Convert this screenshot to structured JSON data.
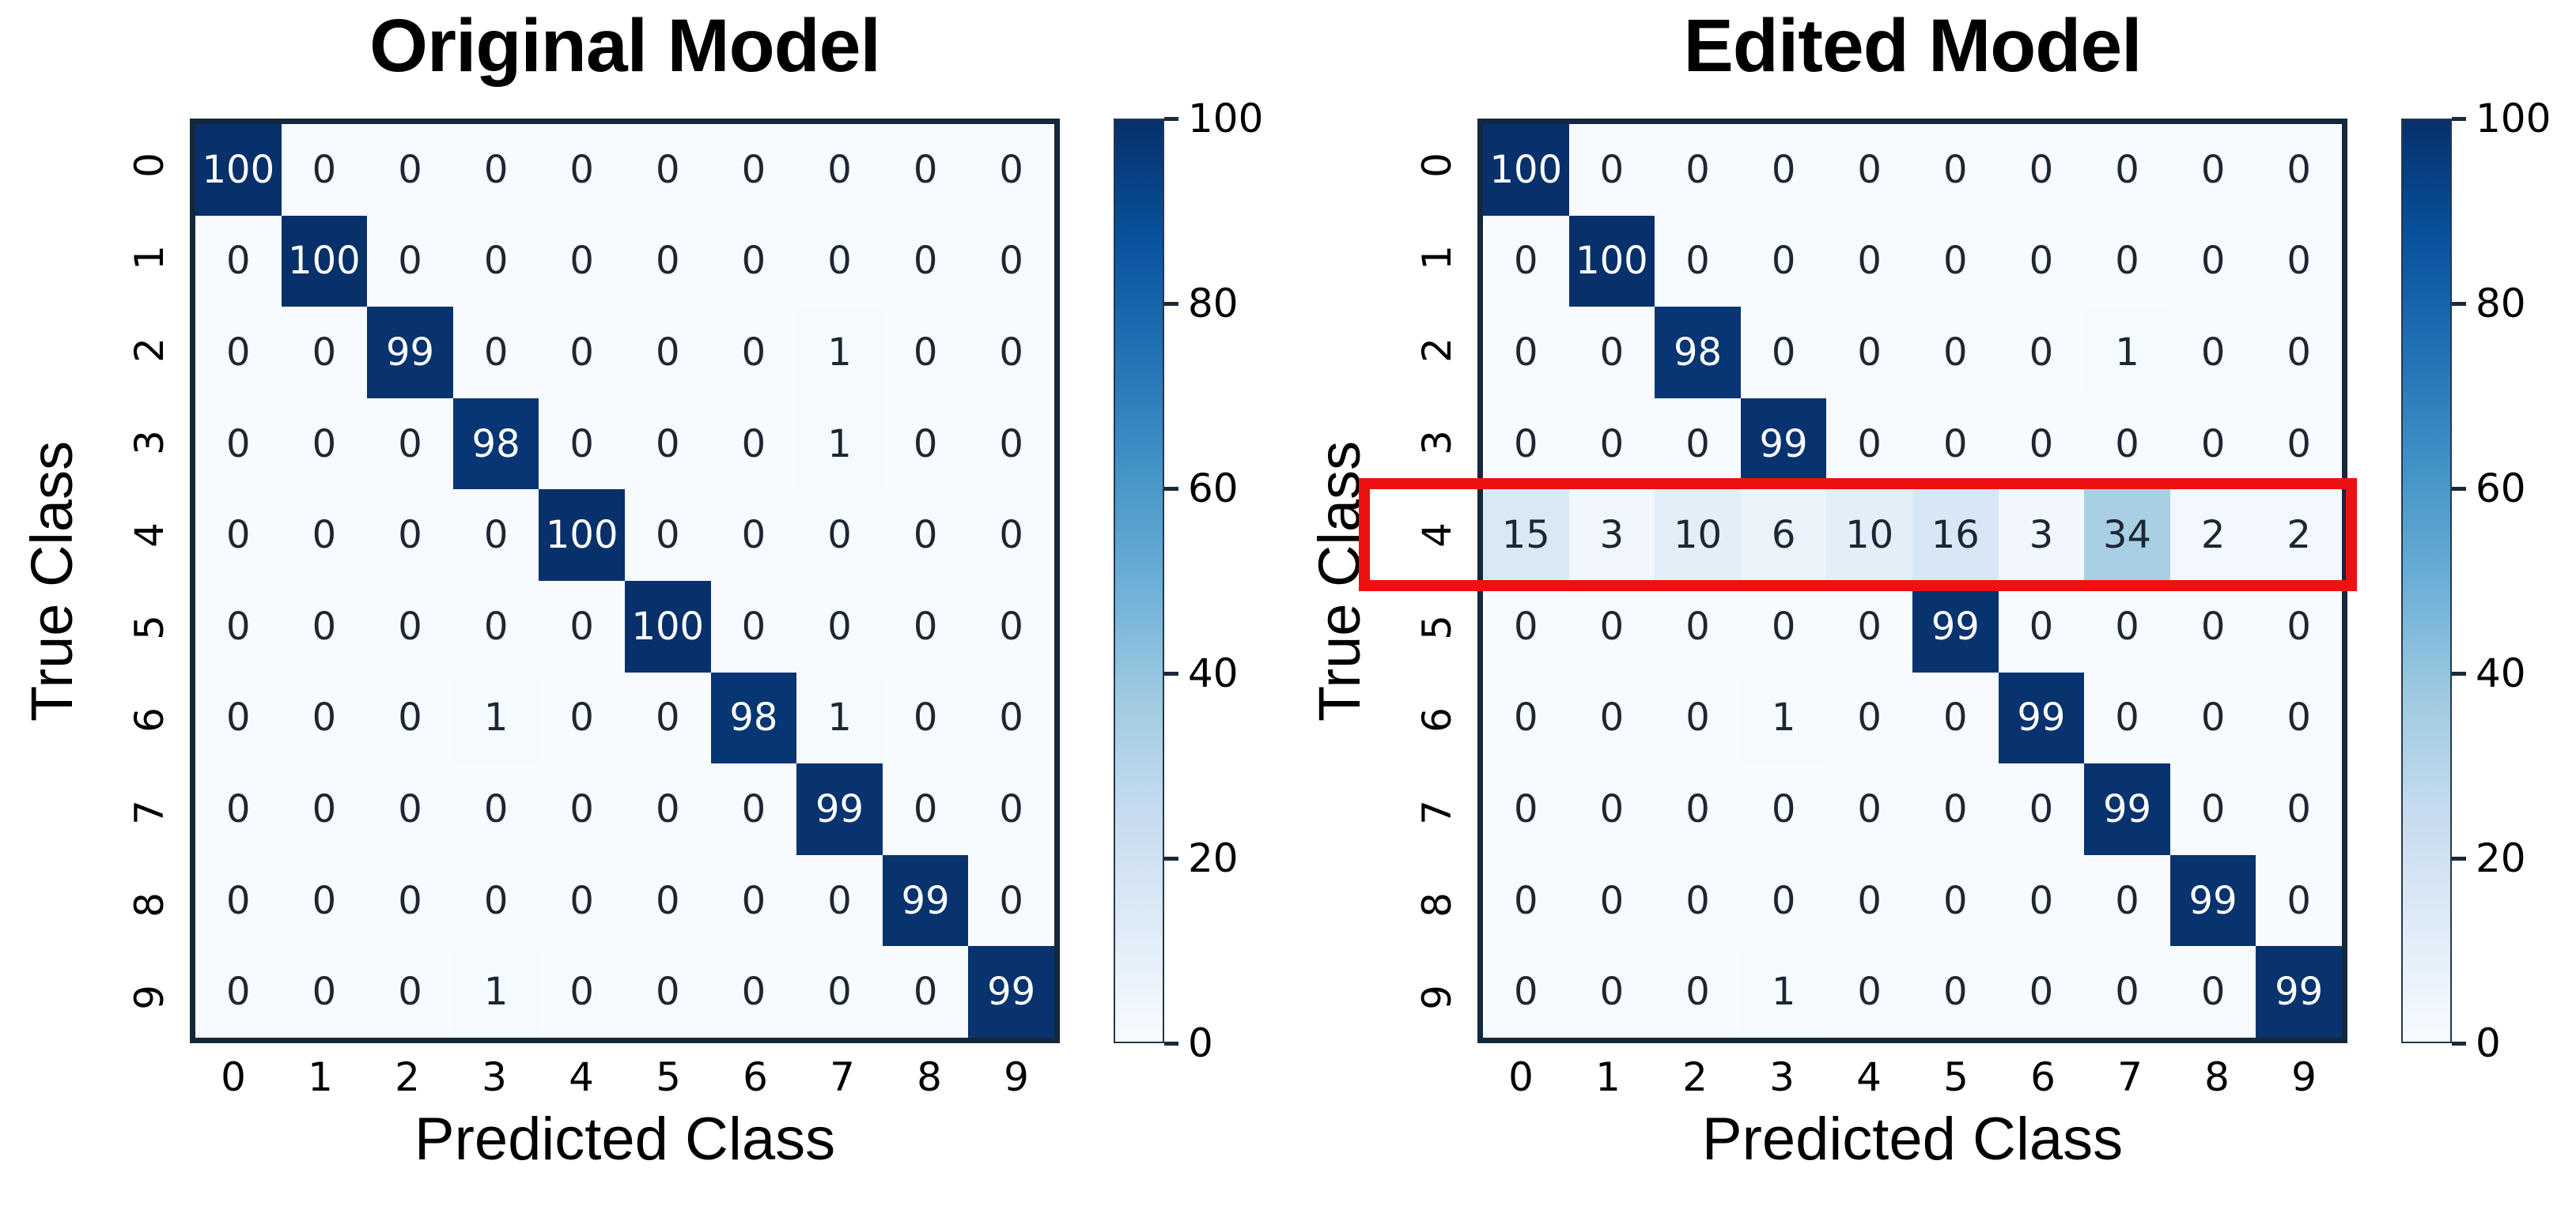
{
  "figure": {
    "background": "#ffffff"
  },
  "colors": {
    "colormap_low": "#f7fbff",
    "colormap_high": "#08306b",
    "spine": "#13283c",
    "highlight": "#ee1111",
    "cell_text_dark": "#1d2733",
    "cell_text_light": "#ffffff"
  },
  "chart_data": [
    {
      "type": "heatmap",
      "title": "Original Model",
      "xlabel": "Predicted Class",
      "ylabel": "True Class",
      "colormap": "Blues",
      "vmin": 0,
      "vmax": 100,
      "x_ticks": [
        "0",
        "1",
        "2",
        "3",
        "4",
        "5",
        "6",
        "7",
        "8",
        "9"
      ],
      "y_ticks": [
        "0",
        "1",
        "2",
        "3",
        "4",
        "5",
        "6",
        "7",
        "8",
        "9"
      ],
      "colorbar_ticks": [
        "100",
        "80",
        "60",
        "40",
        "20",
        "0"
      ],
      "legend_position": "right-colorbar",
      "grid": false,
      "highlight_row": null,
      "values": [
        [
          100,
          0,
          0,
          0,
          0,
          0,
          0,
          0,
          0,
          0
        ],
        [
          0,
          100,
          0,
          0,
          0,
          0,
          0,
          0,
          0,
          0
        ],
        [
          0,
          0,
          99,
          0,
          0,
          0,
          0,
          1,
          0,
          0
        ],
        [
          0,
          0,
          0,
          98,
          0,
          0,
          0,
          1,
          0,
          0
        ],
        [
          0,
          0,
          0,
          0,
          100,
          0,
          0,
          0,
          0,
          0
        ],
        [
          0,
          0,
          0,
          0,
          0,
          100,
          0,
          0,
          0,
          0
        ],
        [
          0,
          0,
          0,
          1,
          0,
          0,
          98,
          1,
          0,
          0
        ],
        [
          0,
          0,
          0,
          0,
          0,
          0,
          0,
          99,
          0,
          0
        ],
        [
          0,
          0,
          0,
          0,
          0,
          0,
          0,
          0,
          99,
          0
        ],
        [
          0,
          0,
          0,
          1,
          0,
          0,
          0,
          0,
          0,
          99
        ]
      ]
    },
    {
      "type": "heatmap",
      "title": "Edited Model",
      "xlabel": "Predicted Class",
      "ylabel": "True Class",
      "colormap": "Blues",
      "vmin": 0,
      "vmax": 100,
      "x_ticks": [
        "0",
        "1",
        "2",
        "3",
        "4",
        "5",
        "6",
        "7",
        "8",
        "9"
      ],
      "y_ticks": [
        "0",
        "1",
        "2",
        "3",
        "4",
        "5",
        "6",
        "7",
        "8",
        "9"
      ],
      "colorbar_ticks": [
        "100",
        "80",
        "60",
        "40",
        "20",
        "0"
      ],
      "legend_position": "right-colorbar",
      "grid": false,
      "highlight_row": 4,
      "highlight_color": "#ee1111",
      "values": [
        [
          100,
          0,
          0,
          0,
          0,
          0,
          0,
          0,
          0,
          0
        ],
        [
          0,
          100,
          0,
          0,
          0,
          0,
          0,
          0,
          0,
          0
        ],
        [
          0,
          0,
          98,
          0,
          0,
          0,
          0,
          1,
          0,
          0
        ],
        [
          0,
          0,
          0,
          99,
          0,
          0,
          0,
          0,
          0,
          0
        ],
        [
          15,
          3,
          10,
          6,
          10,
          16,
          3,
          34,
          2,
          2
        ],
        [
          0,
          0,
          0,
          0,
          0,
          99,
          0,
          0,
          0,
          0
        ],
        [
          0,
          0,
          0,
          1,
          0,
          0,
          99,
          0,
          0,
          0
        ],
        [
          0,
          0,
          0,
          0,
          0,
          0,
          0,
          99,
          0,
          0
        ],
        [
          0,
          0,
          0,
          0,
          0,
          0,
          0,
          0,
          99,
          0
        ],
        [
          0,
          0,
          0,
          1,
          0,
          0,
          0,
          0,
          0,
          99
        ]
      ]
    }
  ]
}
